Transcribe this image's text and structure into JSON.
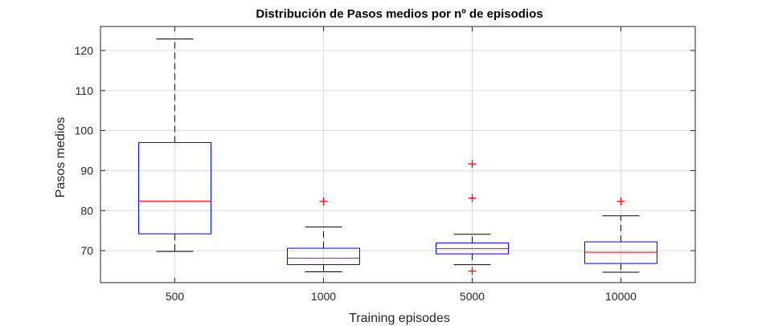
{
  "chart_data": {
    "type": "boxplot",
    "title": "Distribución de Pasos medios por nº de episodios",
    "xlabel": "Training episodes",
    "ylabel": "Pasos medios",
    "categories": [
      "500",
      "1000",
      "5000",
      "10000"
    ],
    "ylim": [
      62,
      126
    ],
    "yticks": [
      70,
      80,
      90,
      100,
      110,
      120
    ],
    "grid": true,
    "boxes": [
      {
        "category": "500",
        "min": 69.8,
        "q1": 74.2,
        "median": 82.4,
        "q3": 97.0,
        "max": 122.9,
        "outliers": []
      },
      {
        "category": "1000",
        "min": 64.7,
        "q1": 66.5,
        "median": 68.1,
        "q3": 70.6,
        "max": 75.9,
        "outliers": [
          82.3
        ]
      },
      {
        "category": "5000",
        "min": 66.5,
        "q1": 69.2,
        "median": 70.5,
        "q3": 71.9,
        "max": 74.1,
        "outliers": [
          91.7,
          83.1,
          64.9
        ]
      },
      {
        "category": "10000",
        "min": 64.6,
        "q1": 66.8,
        "median": 69.6,
        "q3": 72.2,
        "max": 78.7,
        "outliers": [
          82.3
        ]
      }
    ],
    "colors": {
      "box": "#0000ff",
      "median": "#ff0000",
      "whisker": "#000000",
      "outlier": "#ff0000",
      "grid": "#dcdcdc",
      "axis": "#262626"
    }
  }
}
